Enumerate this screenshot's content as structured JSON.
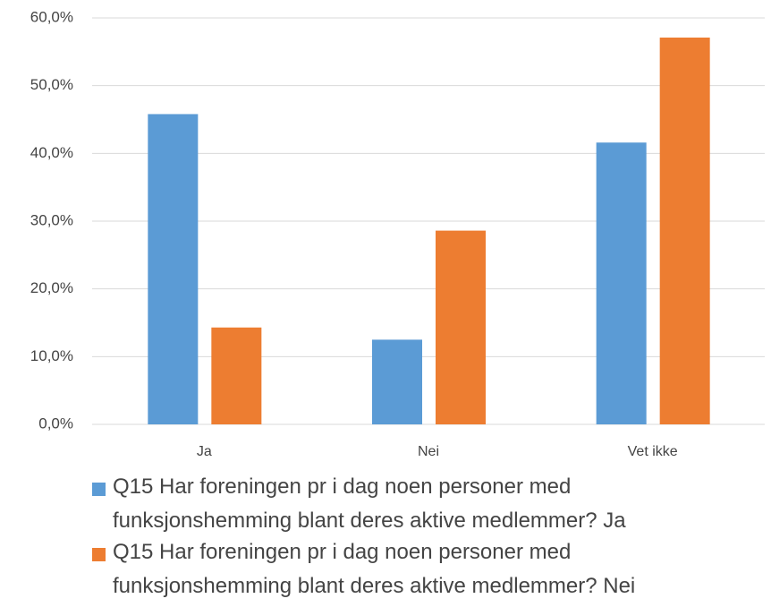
{
  "chart_data": {
    "type": "bar",
    "categories": [
      "Ja",
      "Nei",
      "Vet ikke"
    ],
    "series": [
      {
        "name": "Q15 Har foreningen pr i dag noen personer med funksjonshemming blant deres aktive medlemmer? Ja",
        "color": "#5b9bd5",
        "values": [
          45.8,
          12.5,
          41.6
        ]
      },
      {
        "name": "Q15 Har foreningen pr i dag noen personer med funksjonshemming blant deres aktive medlemmer? Nei",
        "color": "#ed7d31",
        "values": [
          14.3,
          28.6,
          57.1
        ]
      }
    ],
    "ylim": [
      0,
      60
    ],
    "yticks": [
      {
        "value": 0,
        "label": "0,0%"
      },
      {
        "value": 10,
        "label": "10,0%"
      },
      {
        "value": 20,
        "label": "20,0%"
      },
      {
        "value": 30,
        "label": "30,0%"
      },
      {
        "value": 40,
        "label": "40,0%"
      },
      {
        "value": 50,
        "label": "50,0%"
      },
      {
        "value": 60,
        "label": "60,0%"
      }
    ],
    "grid": true,
    "legend": "bottom"
  }
}
